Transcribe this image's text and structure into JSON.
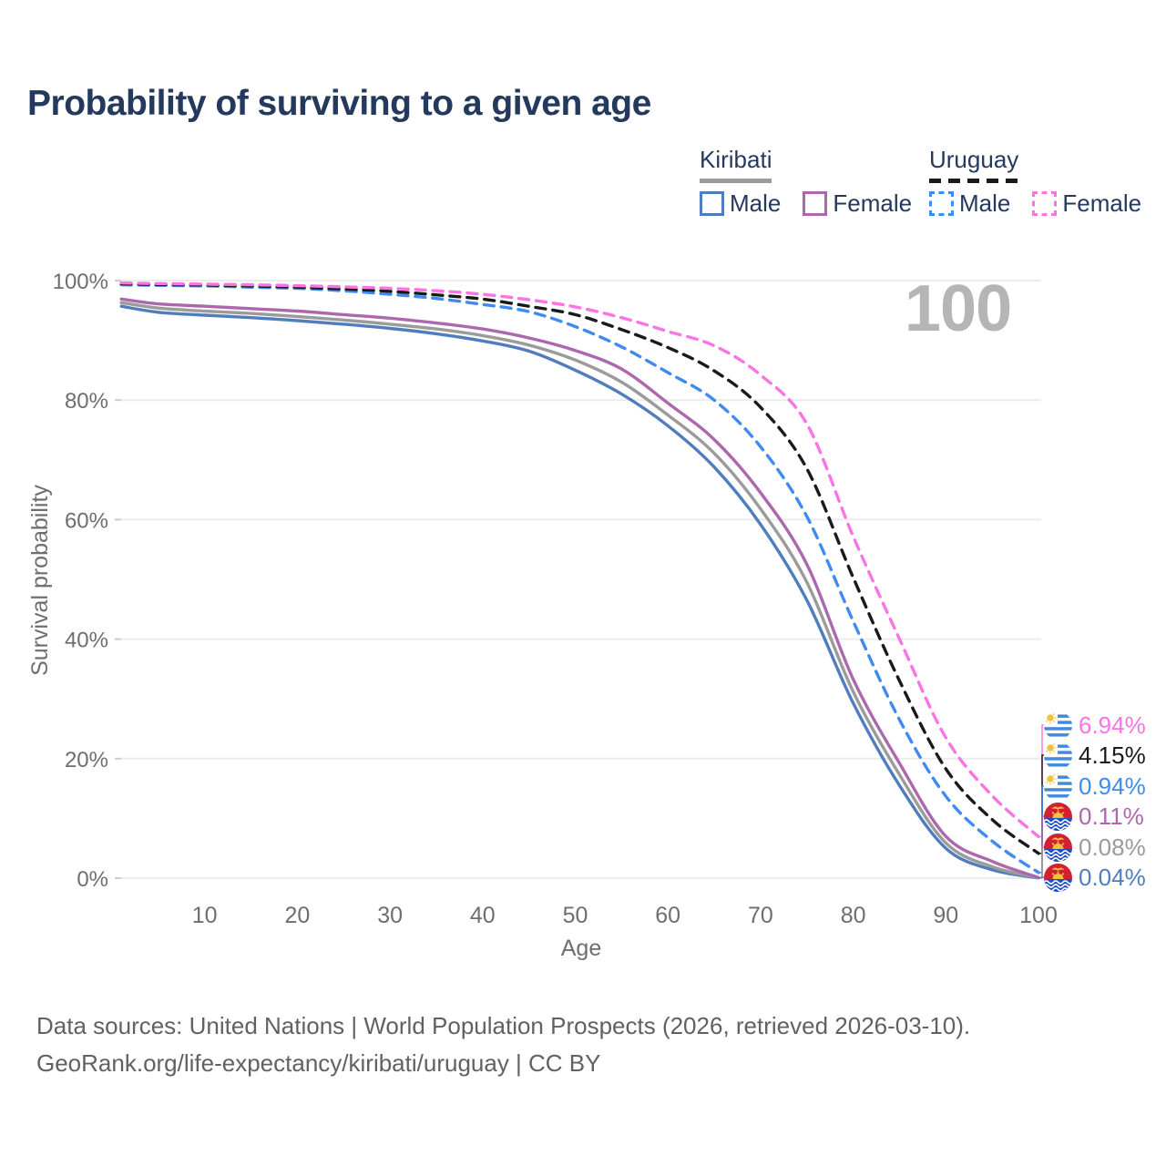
{
  "title": "Probability of surviving to a given age",
  "watermark_age": "100",
  "legend": {
    "groups": [
      {
        "name": "Kiribati",
        "rule_style": "solid",
        "rule_color": "#9b9b9b",
        "items": [
          {
            "label": "Male",
            "color": "#4f7dbe",
            "dashed": false
          },
          {
            "label": "Female",
            "color": "#ad68ad",
            "dashed": false
          }
        ]
      },
      {
        "name": "Uruguay",
        "rule_style": "dashed",
        "rule_color": "#1a1a1a",
        "items": [
          {
            "label": "Male",
            "color": "#3f8bf2",
            "dashed": true
          },
          {
            "label": "Female",
            "color": "#fb74e4",
            "dashed": true
          }
        ]
      }
    ]
  },
  "chart_data": {
    "type": "line",
    "title": "Probability of surviving to a given age",
    "xlabel": "Age",
    "ylabel": "Survival probability",
    "xlim": [
      1,
      100
    ],
    "ylim": [
      0,
      100
    ],
    "grid": "horizontal-only",
    "x_ticks": [
      10,
      20,
      30,
      40,
      50,
      60,
      70,
      80,
      90,
      100
    ],
    "y_ticks": [
      0,
      20,
      40,
      60,
      80,
      100
    ],
    "y_tick_suffix": "%",
    "x": [
      1,
      5,
      10,
      15,
      20,
      25,
      30,
      35,
      40,
      45,
      50,
      55,
      60,
      65,
      70,
      75,
      80,
      85,
      90,
      95,
      100
    ],
    "series": [
      {
        "name": "Kiribati Male",
        "country": "kiribati",
        "sex": "male",
        "color": "#4f7dbe",
        "dashed": false,
        "end_label": "0.04%",
        "values": [
          95.7,
          94.7,
          94.2,
          93.8,
          93.3,
          92.7,
          92.0,
          91.1,
          89.9,
          88.2,
          85.0,
          81.0,
          75.7,
          68.8,
          59.2,
          46.5,
          29.3,
          15.5,
          5.0,
          1.4,
          0.04
        ]
      },
      {
        "name": "Kiribati",
        "country": "kiribati",
        "sex": "both",
        "color": "#9b9b9b",
        "dashed": false,
        "end_label": "0.08%",
        "values": [
          96.3,
          95.4,
          94.9,
          94.5,
          94.0,
          93.4,
          92.7,
          91.9,
          90.8,
          89.2,
          86.7,
          83.0,
          77.5,
          71.1,
          61.8,
          49.5,
          31.2,
          17.3,
          5.9,
          1.9,
          0.08
        ]
      },
      {
        "name": "Kiribati Female",
        "country": "kiribati",
        "sex": "female",
        "color": "#ad68ad",
        "dashed": false,
        "end_label": "0.11%",
        "values": [
          96.9,
          96.1,
          95.7,
          95.3,
          94.9,
          94.3,
          93.7,
          92.9,
          91.9,
          90.4,
          88.3,
          85.2,
          79.5,
          73.4,
          64.5,
          52.5,
          33.3,
          19.2,
          7.0,
          2.8,
          0.11
        ]
      },
      {
        "name": "Uruguay Male",
        "country": "uruguay",
        "sex": "male",
        "color": "#3f8bf2",
        "dashed": true,
        "end_label": "0.94%",
        "values": [
          99.3,
          99.2,
          99.1,
          98.9,
          98.7,
          98.3,
          97.7,
          97.0,
          96.0,
          94.8,
          92.3,
          88.9,
          84.6,
          80.0,
          72.2,
          60.5,
          43.0,
          26.5,
          13.7,
          6.2,
          0.94
        ]
      },
      {
        "name": "Uruguay",
        "country": "uruguay",
        "sex": "both",
        "color": "#1a1a1a",
        "dashed": true,
        "end_label": "4.15%",
        "values": [
          99.45,
          99.35,
          99.25,
          99.1,
          98.9,
          98.6,
          98.2,
          97.6,
          96.9,
          95.7,
          94.3,
          91.8,
          88.8,
          84.9,
          78.8,
          68.5,
          50.3,
          33.0,
          18.3,
          9.8,
          4.15
        ]
      },
      {
        "name": "Uruguay Female",
        "country": "uruguay",
        "sex": "female",
        "color": "#fb74e4",
        "dashed": true,
        "end_label": "6.94%",
        "values": [
          99.6,
          99.5,
          99.4,
          99.3,
          99.15,
          98.95,
          98.7,
          98.3,
          97.7,
          96.8,
          95.6,
          93.8,
          91.5,
          89.1,
          84.2,
          76.0,
          57.2,
          40.0,
          23.5,
          13.8,
          6.94
        ]
      }
    ],
    "end_label_order_top_to_bottom": [
      "Uruguay Female",
      "Uruguay",
      "Uruguay Male",
      "Kiribati Female",
      "Kiribati",
      "Kiribati Male"
    ]
  },
  "footer": {
    "line1": "Data sources: United Nations | World Population Prospects (2026, retrieved 2026-03-10).",
    "line2": "GeoRank.org/life-expectancy/kiribati/uruguay | CC BY"
  }
}
